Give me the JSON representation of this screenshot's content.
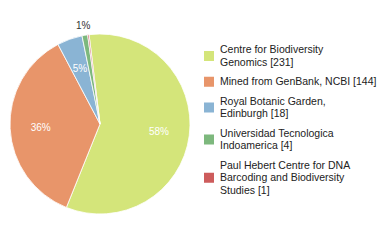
{
  "chart_data": {
    "type": "pie",
    "categories": [
      "Centre for Biodiversity\nGenomics [231]",
      "Mined from GenBank, NCBI [144]",
      "Royal Botanic Garden,\nEdinburgh [18]",
      "Universidad Tecnologica\nIndoamerica [4]",
      "Paul Hebert Centre for DNA\nBarcoding and Biodiversity\nStudies [1]"
    ],
    "values": [
      58.04,
      36.18,
      4.52,
      1.01,
      0.25
    ],
    "value_labels": [
      "58%",
      "36%",
      "5%",
      "1%",
      null
    ],
    "colors": [
      "#d4e57a",
      "#e8956a",
      "#8ab4d4",
      "#7db87d",
      "#cd5c5c"
    ],
    "data_labels": true,
    "legend": "right"
  }
}
